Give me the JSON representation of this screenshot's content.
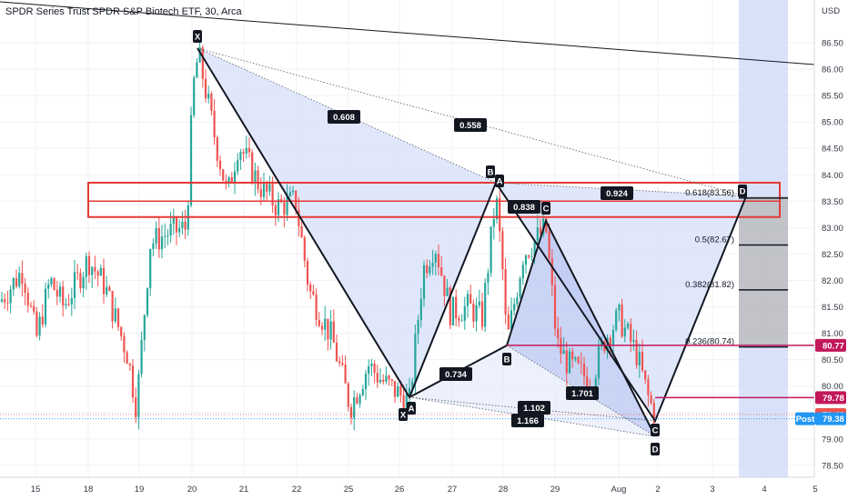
{
  "header": {
    "title": "SPDR Series Trust SPDR S&P Biotech ETF, 30, Arca"
  },
  "colors": {
    "up": "#26a69a",
    "down": "#ef5350",
    "pattern_fill": "#dbe3fa",
    "pattern_edge": "#6d82cf",
    "zone": "#e53935",
    "label_bg": "#131722",
    "level_marker": "#c2185b",
    "post_badge": "#2196f3",
    "forecast_band": "#c9d6f6"
  },
  "chart_data": {
    "type": "candlestick",
    "y_axis": {
      "unit": "USD",
      "ylim": [
        78.2,
        86.9
      ],
      "side": "right",
      "ticks": [
        "86.50",
        "86.00",
        "85.50",
        "85.00",
        "84.50",
        "84.00",
        "83.50",
        "83.00",
        "82.50",
        "82.00",
        "81.50",
        "81.00",
        "80.50",
        "80.00",
        "79.50",
        "79.00",
        "78.50"
      ]
    },
    "x_axis": {
      "ticks": [
        "15",
        "18",
        "19",
        "20",
        "21",
        "22",
        "25",
        "26",
        "27",
        "28",
        "29",
        "Aug",
        "2",
        "3",
        "4",
        "5"
      ]
    },
    "grid": true,
    "price_tags": [
      {
        "label": "80.77",
        "price": 80.77,
        "color": "#c2185b"
      },
      {
        "label": "79.78",
        "price": 79.78,
        "color": "#c2185b"
      },
      {
        "label": "79.46",
        "price": 79.46,
        "color": "#ef5350"
      },
      {
        "label": "79.38",
        "price": 79.38,
        "color": "#2196f3",
        "badge": "Post"
      }
    ],
    "fib_levels": [
      {
        "label": "0.618(83.56)",
        "price": 83.56
      },
      {
        "label": "0.5(82.67)",
        "price": 82.67
      },
      {
        "label": "0.382(81.82)",
        "price": 81.82
      },
      {
        "label": "0.236(80.74)",
        "price": 80.74
      }
    ],
    "resistance_zone": [
      83.2,
      83.85
    ],
    "ratio_labels": [
      "0.608",
      "0.558",
      "0.924",
      "0.838",
      "0.734",
      "1.701",
      "1.102",
      "1.166"
    ],
    "point_labels": [
      "X",
      "B",
      "C",
      "D",
      "A",
      "X",
      "A",
      "B",
      "C",
      "D"
    ],
    "candles_sample": [
      {
        "t": "Jul 20",
        "o": 83.2,
        "h": 86.4,
        "l": 83.0,
        "c": 86.3
      },
      {
        "t": "Jul 26",
        "o": 79.6,
        "h": 80.4,
        "l": 79.5,
        "c": 80.2
      },
      {
        "t": "Jul 28",
        "o": 83.5,
        "h": 83.7,
        "l": 80.7,
        "c": 81.0
      },
      {
        "t": "Jul 29",
        "o": 82.6,
        "h": 83.1,
        "l": 82.3,
        "c": 83.0
      },
      {
        "t": "Aug 2",
        "o": 79.9,
        "h": 80.0,
        "l": 79.4,
        "c": 79.46
      }
    ]
  }
}
